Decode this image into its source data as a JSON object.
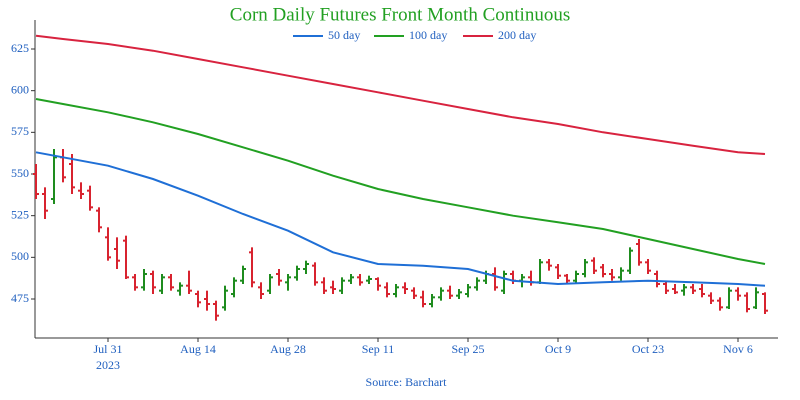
{
  "chart_data": {
    "type": "ohlc",
    "title": "Corn Daily Futures Front Month Continuous",
    "source": "Source: Barchart",
    "x": [
      "2023-07-19",
      "2023-07-20",
      "2023-07-21",
      "2023-07-24",
      "2023-07-25",
      "2023-07-26",
      "2023-07-27",
      "2023-07-28",
      "2023-07-31",
      "2023-08-01",
      "2023-08-02",
      "2023-08-03",
      "2023-08-04",
      "2023-08-07",
      "2023-08-08",
      "2023-08-09",
      "2023-08-10",
      "2023-08-11",
      "2023-08-14",
      "2023-08-15",
      "2023-08-16",
      "2023-08-17",
      "2023-08-18",
      "2023-08-21",
      "2023-08-22",
      "2023-08-23",
      "2023-08-24",
      "2023-08-25",
      "2023-08-28",
      "2023-08-29",
      "2023-08-30",
      "2023-08-31",
      "2023-09-01",
      "2023-09-04",
      "2023-09-05",
      "2023-09-06",
      "2023-09-07",
      "2023-09-08",
      "2023-09-11",
      "2023-09-12",
      "2023-09-13",
      "2023-09-14",
      "2023-09-15",
      "2023-09-18",
      "2023-09-19",
      "2023-09-20",
      "2023-09-21",
      "2023-09-22",
      "2023-09-25",
      "2023-09-26",
      "2023-09-27",
      "2023-09-28",
      "2023-09-29",
      "2023-10-02",
      "2023-10-03",
      "2023-10-04",
      "2023-10-05",
      "2023-10-06",
      "2023-10-09",
      "2023-10-10",
      "2023-10-11",
      "2023-10-12",
      "2023-10-13",
      "2023-10-16",
      "2023-10-17",
      "2023-10-18",
      "2023-10-19",
      "2023-10-20",
      "2023-10-23",
      "2023-10-24",
      "2023-10-25",
      "2023-10-26",
      "2023-10-27",
      "2023-10-30",
      "2023-10-31",
      "2023-11-01",
      "2023-11-02",
      "2023-11-03",
      "2023-11-06",
      "2023-11-07",
      "2023-11-08",
      "2023-11-09"
    ],
    "open": [
      550,
      538,
      535,
      560,
      556,
      540,
      540,
      528,
      512,
      505,
      510,
      488,
      482,
      490,
      480,
      488,
      480,
      483,
      478,
      475,
      472,
      470,
      478,
      486,
      503,
      482,
      480,
      490,
      485,
      488,
      493,
      495,
      485,
      482,
      480,
      486,
      488,
      486,
      487,
      482,
      478,
      482,
      480,
      476,
      472,
      476,
      480,
      477,
      478,
      482,
      486,
      490,
      480,
      490,
      486,
      488,
      485,
      497,
      494,
      489,
      486,
      490,
      498,
      494,
      490,
      488,
      492,
      508,
      497,
      490,
      484,
      481,
      480,
      482,
      481,
      477,
      474,
      470,
      480,
      477,
      470,
      478
    ],
    "high": [
      556,
      542,
      565,
      565,
      562,
      545,
      543,
      530,
      518,
      512,
      513,
      490,
      493,
      492,
      490,
      490,
      485,
      492,
      480,
      480,
      474,
      483,
      488,
      495,
      506,
      485,
      490,
      493,
      490,
      495,
      498,
      497,
      488,
      486,
      488,
      490,
      490,
      489,
      488,
      485,
      484,
      485,
      482,
      480,
      478,
      482,
      483,
      481,
      484,
      488,
      492,
      494,
      492,
      492,
      490,
      492,
      499,
      499,
      496,
      490,
      492,
      499,
      500,
      496,
      493,
      494,
      506,
      511,
      499,
      492,
      486,
      484,
      484,
      484,
      484,
      479,
      476,
      482,
      482,
      479,
      482,
      479
    ],
    "low": [
      535,
      523,
      532,
      545,
      538,
      535,
      528,
      515,
      498,
      493,
      487,
      480,
      480,
      478,
      478,
      480,
      477,
      478,
      470,
      468,
      462,
      468,
      476,
      484,
      482,
      475,
      478,
      483,
      480,
      486,
      490,
      483,
      478,
      478,
      478,
      484,
      483,
      484,
      480,
      476,
      476,
      478,
      475,
      470,
      470,
      474,
      475,
      475,
      476,
      480,
      484,
      480,
      478,
      484,
      482,
      483,
      484,
      492,
      487,
      484,
      484,
      488,
      490,
      488,
      486,
      486,
      490,
      495,
      490,
      482,
      478,
      478,
      477,
      478,
      476,
      472,
      468,
      469,
      474,
      467,
      469,
      466
    ],
    "close": [
      538,
      528,
      560,
      548,
      542,
      538,
      530,
      518,
      500,
      498,
      488,
      482,
      490,
      482,
      488,
      482,
      483,
      480,
      473,
      472,
      465,
      480,
      486,
      493,
      485,
      478,
      488,
      486,
      488,
      493,
      496,
      485,
      480,
      481,
      486,
      488,
      485,
      487,
      483,
      478,
      482,
      481,
      477,
      472,
      476,
      480,
      477,
      479,
      482,
      486,
      490,
      482,
      490,
      486,
      488,
      485,
      497,
      495,
      489,
      486,
      490,
      497,
      492,
      490,
      488,
      492,
      504,
      497,
      492,
      484,
      480,
      479,
      482,
      480,
      478,
      474,
      470,
      480,
      477,
      469,
      479,
      468
    ],
    "up_color": "#1e8c1e",
    "down_color": "#d8232f",
    "series": [
      {
        "name": "50 day",
        "color": "#1f6fd6",
        "x": [
          "2023-07-19",
          "2023-07-24",
          "2023-07-31",
          "2023-08-07",
          "2023-08-14",
          "2023-08-21",
          "2023-08-28",
          "2023-09-04",
          "2023-09-11",
          "2023-09-18",
          "2023-09-25",
          "2023-10-02",
          "2023-10-09",
          "2023-10-16",
          "2023-10-23",
          "2023-10-30",
          "2023-11-06",
          "2023-11-09"
        ],
        "values": [
          563,
          560,
          555,
          547,
          537,
          526,
          516,
          503,
          496,
          495,
          493,
          486,
          484,
          485,
          486,
          485,
          484,
          483
        ]
      },
      {
        "name": "100 day",
        "color": "#22a022",
        "x": [
          "2023-07-19",
          "2023-07-24",
          "2023-07-31",
          "2023-08-07",
          "2023-08-14",
          "2023-08-21",
          "2023-08-28",
          "2023-09-04",
          "2023-09-11",
          "2023-09-18",
          "2023-09-25",
          "2023-10-02",
          "2023-10-09",
          "2023-10-16",
          "2023-10-23",
          "2023-10-30",
          "2023-11-06",
          "2023-11-09"
        ],
        "values": [
          595,
          592,
          587,
          581,
          574,
          566,
          558,
          549,
          541,
          535,
          530,
          525,
          521,
          517,
          511,
          505,
          499,
          496
        ]
      },
      {
        "name": "200 day",
        "color": "#d8233f",
        "x": [
          "2023-07-19",
          "2023-07-24",
          "2023-07-31",
          "2023-08-07",
          "2023-08-14",
          "2023-08-21",
          "2023-08-28",
          "2023-09-04",
          "2023-09-11",
          "2023-09-18",
          "2023-09-25",
          "2023-10-02",
          "2023-10-09",
          "2023-10-16",
          "2023-10-23",
          "2023-10-30",
          "2023-11-06",
          "2023-11-09"
        ],
        "values": [
          633,
          631,
          628,
          624,
          619,
          614,
          609,
          604,
          599,
          594,
          589,
          584,
          580,
          575,
          571,
          567,
          563,
          562
        ]
      }
    ],
    "ylim": [
      451.6,
      642.4
    ],
    "yticks": [
      475,
      500,
      525,
      550,
      575,
      600,
      625
    ],
    "xticks": [
      {
        "value": "2023-07-31",
        "label": "Jul 31"
      },
      {
        "value": "2023-08-14",
        "label": "Aug 14"
      },
      {
        "value": "2023-08-28",
        "label": "Aug 28"
      },
      {
        "value": "2023-09-11",
        "label": "Sep 11"
      },
      {
        "value": "2023-09-25",
        "label": "Sep 25"
      },
      {
        "value": "2023-10-09",
        "label": "Oct 9"
      },
      {
        "value": "2023-10-23",
        "label": "Oct 23"
      },
      {
        "value": "2023-11-06",
        "label": "Nov 6"
      }
    ],
    "x_year_label": "2023"
  }
}
